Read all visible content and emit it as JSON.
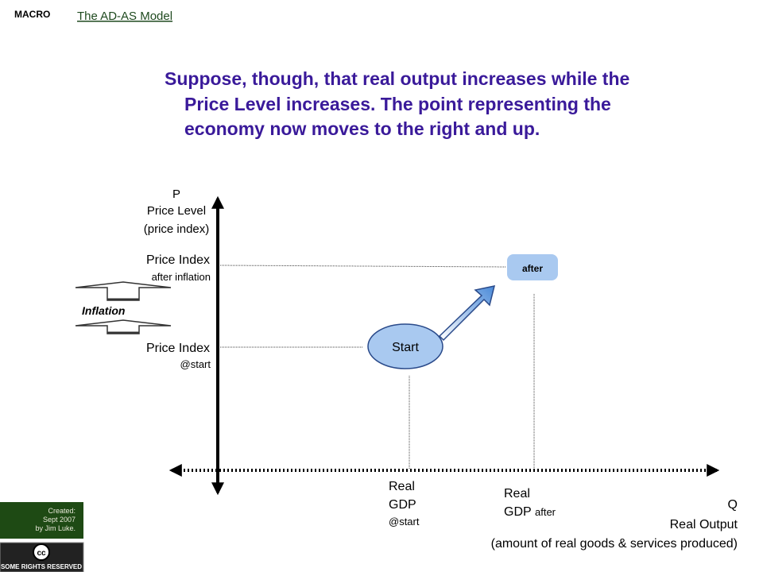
{
  "header": {
    "tag": "MACRO",
    "title": "The AD-AS Model"
  },
  "body": {
    "lines": [
      "Suppose, though, that real output increases while the",
      "Price Level increases.  The point representing the",
      "economy now moves to the right and up."
    ]
  },
  "y_axis": {
    "symbol": "P",
    "name": "Price Level",
    "note": "(price index)"
  },
  "price_after": {
    "label": "Price Index",
    "note": "after  inflation"
  },
  "inflation": "Inflation",
  "price_start": {
    "label": "Price Index",
    "note": "@start"
  },
  "points": {
    "start": "Start",
    "after": "after"
  },
  "gdp_start": {
    "line1": "Real",
    "line2": "GDP",
    "note": "@start"
  },
  "gdp_after": {
    "line1": "Real",
    "line2": "GDP",
    "note": "after"
  },
  "x_axis": {
    "symbol": "Q",
    "name": "Real Output",
    "note": "(amount of real goods & services produced)"
  },
  "footer": {
    "created": [
      "Created:",
      "Sept 2007",
      "by Jim Luke."
    ],
    "license_icon": "cc",
    "license": "SOME RIGHTS RESERVED"
  }
}
